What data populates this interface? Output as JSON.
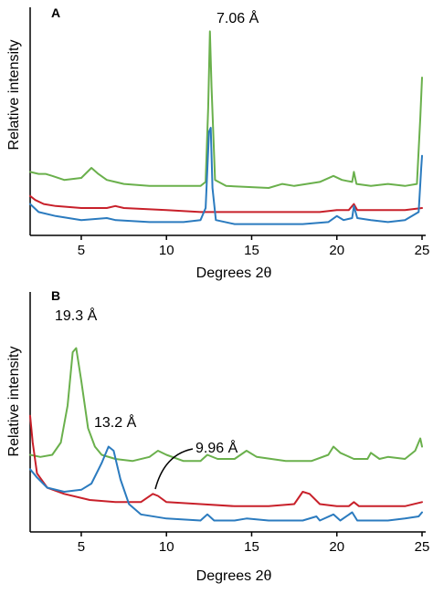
{
  "chart_data": [
    {
      "type": "line",
      "panel_label": "A",
      "xlabel": "Degrees 2θ",
      "ylabel": "Relative intensity",
      "xlim": [
        2,
        25
      ],
      "ylim": [
        0,
        100
      ],
      "x_ticks": [
        5,
        10,
        15,
        20,
        25
      ],
      "grid": false,
      "annotations": [
        {
          "text": "7.06 Å",
          "x": 12.6,
          "y": 96
        }
      ],
      "series": [
        {
          "color": "#6ab04c",
          "points": [
            [
              2,
              28
            ],
            [
              2.5,
              27
            ],
            [
              2.9,
              27
            ],
            [
              3.3,
              26
            ],
            [
              4,
              24
            ],
            [
              5,
              25
            ],
            [
              5.6,
              30
            ],
            [
              6,
              27
            ],
            [
              6.5,
              24
            ],
            [
              7.5,
              22
            ],
            [
              9,
              21
            ],
            [
              11,
              21
            ],
            [
              12,
              21
            ],
            [
              12.3,
              23
            ],
            [
              12.45,
              60
            ],
            [
              12.55,
              98
            ],
            [
              12.65,
              70
            ],
            [
              12.85,
              24
            ],
            [
              13.5,
              21
            ],
            [
              16,
              20
            ],
            [
              16.8,
              22
            ],
            [
              17.5,
              21
            ],
            [
              19,
              23
            ],
            [
              19.8,
              26
            ],
            [
              20.3,
              24
            ],
            [
              20.9,
              23
            ],
            [
              21,
              28
            ],
            [
              21.15,
              22
            ],
            [
              22,
              21
            ],
            [
              23,
              22
            ],
            [
              24,
              21
            ],
            [
              24.7,
              22
            ],
            [
              24.9,
              55
            ],
            [
              25,
              75
            ]
          ]
        },
        {
          "color": "#c8202a",
          "points": [
            [
              2,
              16
            ],
            [
              2.3,
              14
            ],
            [
              2.8,
              12
            ],
            [
              3.5,
              11
            ],
            [
              5,
              10
            ],
            [
              6.5,
              10
            ],
            [
              7,
              11
            ],
            [
              7.5,
              10
            ],
            [
              10,
              9
            ],
            [
              12,
              8
            ],
            [
              14,
              8
            ],
            [
              17,
              8
            ],
            [
              19,
              8
            ],
            [
              20,
              9
            ],
            [
              20.7,
              9
            ],
            [
              21,
              12
            ],
            [
              21.2,
              9
            ],
            [
              22,
              9
            ],
            [
              24,
              9
            ],
            [
              25,
              10
            ]
          ]
        },
        {
          "color": "#2b7bbf",
          "points": [
            [
              2,
              12
            ],
            [
              2.5,
              8
            ],
            [
              3.5,
              6
            ],
            [
              5,
              4
            ],
            [
              6.5,
              5
            ],
            [
              7,
              4
            ],
            [
              9,
              3
            ],
            [
              11,
              3
            ],
            [
              12,
              4
            ],
            [
              12.3,
              10
            ],
            [
              12.5,
              48
            ],
            [
              12.6,
              50
            ],
            [
              12.7,
              20
            ],
            [
              12.9,
              4
            ],
            [
              14,
              2
            ],
            [
              16,
              2
            ],
            [
              18,
              2
            ],
            [
              19.5,
              3
            ],
            [
              20,
              6
            ],
            [
              20.4,
              4
            ],
            [
              20.9,
              5
            ],
            [
              21,
              11
            ],
            [
              21.2,
              5
            ],
            [
              22,
              4
            ],
            [
              23,
              3
            ],
            [
              24,
              4
            ],
            [
              24.8,
              8
            ],
            [
              24.95,
              30
            ],
            [
              25,
              36
            ]
          ]
        }
      ]
    },
    {
      "type": "line",
      "panel_label": "B",
      "xlabel": "Degrees 2θ",
      "ylabel": "Relative intensity",
      "xlim": [
        2,
        25
      ],
      "ylim": [
        0,
        100
      ],
      "x_ticks": [
        5,
        10,
        15,
        20,
        25
      ],
      "grid": false,
      "annotations": [
        {
          "text": "19.3 Å",
          "x": 4.6,
          "y": 98
        },
        {
          "text": "13.2 Å",
          "x": 6.8,
          "y": 52
        },
        {
          "text": "9.96 Å",
          "x": 9.4,
          "y": 34
        }
      ],
      "series": [
        {
          "color": "#6ab04c",
          "points": [
            [
              2,
              34
            ],
            [
              2.6,
              33
            ],
            [
              3.3,
              34
            ],
            [
              3.8,
              40
            ],
            [
              4.2,
              58
            ],
            [
              4.5,
              84
            ],
            [
              4.7,
              86
            ],
            [
              5,
              70
            ],
            [
              5.4,
              47
            ],
            [
              5.8,
              38
            ],
            [
              6.2,
              34
            ],
            [
              7,
              32
            ],
            [
              8,
              31
            ],
            [
              9,
              33
            ],
            [
              9.5,
              36
            ],
            [
              10,
              34
            ],
            [
              11,
              31
            ],
            [
              12,
              31
            ],
            [
              12.4,
              34
            ],
            [
              13,
              32
            ],
            [
              14,
              32
            ],
            [
              14.7,
              36
            ],
            [
              15.3,
              33
            ],
            [
              17,
              31
            ],
            [
              18.5,
              31
            ],
            [
              19.5,
              34
            ],
            [
              19.8,
              38
            ],
            [
              20.2,
              35
            ],
            [
              21,
              32
            ],
            [
              21.8,
              32
            ],
            [
              22,
              35
            ],
            [
              22.5,
              32
            ],
            [
              23,
              33
            ],
            [
              24,
              32
            ],
            [
              24.6,
              36
            ],
            [
              24.9,
              42
            ],
            [
              25,
              38
            ]
          ]
        },
        {
          "color": "#c8202a",
          "points": [
            [
              2,
              53
            ],
            [
              2.15,
              40
            ],
            [
              2.4,
              25
            ],
            [
              3,
              18
            ],
            [
              4,
              15
            ],
            [
              5.5,
              12
            ],
            [
              7,
              11
            ],
            [
              8.5,
              11
            ],
            [
              9.2,
              15
            ],
            [
              9.5,
              14
            ],
            [
              10,
              11
            ],
            [
              12,
              10
            ],
            [
              14,
              9
            ],
            [
              16,
              9
            ],
            [
              17.5,
              10
            ],
            [
              18,
              16
            ],
            [
              18.4,
              15
            ],
            [
              19,
              10
            ],
            [
              20,
              9
            ],
            [
              20.7,
              9
            ],
            [
              21,
              11
            ],
            [
              21.3,
              9
            ],
            [
              22,
              9
            ],
            [
              24,
              9
            ],
            [
              25,
              11
            ]
          ]
        },
        {
          "color": "#2b7bbf",
          "points": [
            [
              2,
              27
            ],
            [
              2.4,
              23
            ],
            [
              3,
              18
            ],
            [
              4,
              16
            ],
            [
              5,
              17
            ],
            [
              5.6,
              20
            ],
            [
              6.2,
              30
            ],
            [
              6.6,
              38
            ],
            [
              6.9,
              36
            ],
            [
              7.3,
              22
            ],
            [
              7.8,
              10
            ],
            [
              8.5,
              5
            ],
            [
              10,
              3
            ],
            [
              12,
              2
            ],
            [
              12.4,
              5
            ],
            [
              12.8,
              2
            ],
            [
              14,
              2
            ],
            [
              14.7,
              3
            ],
            [
              16,
              2
            ],
            [
              18,
              2
            ],
            [
              18.8,
              4
            ],
            [
              19,
              2
            ],
            [
              19.8,
              5
            ],
            [
              20.2,
              2
            ],
            [
              20.9,
              6
            ],
            [
              21.2,
              2
            ],
            [
              22,
              2
            ],
            [
              23,
              2
            ],
            [
              24,
              3
            ],
            [
              24.8,
              4
            ],
            [
              25,
              6
            ]
          ]
        }
      ]
    }
  ]
}
